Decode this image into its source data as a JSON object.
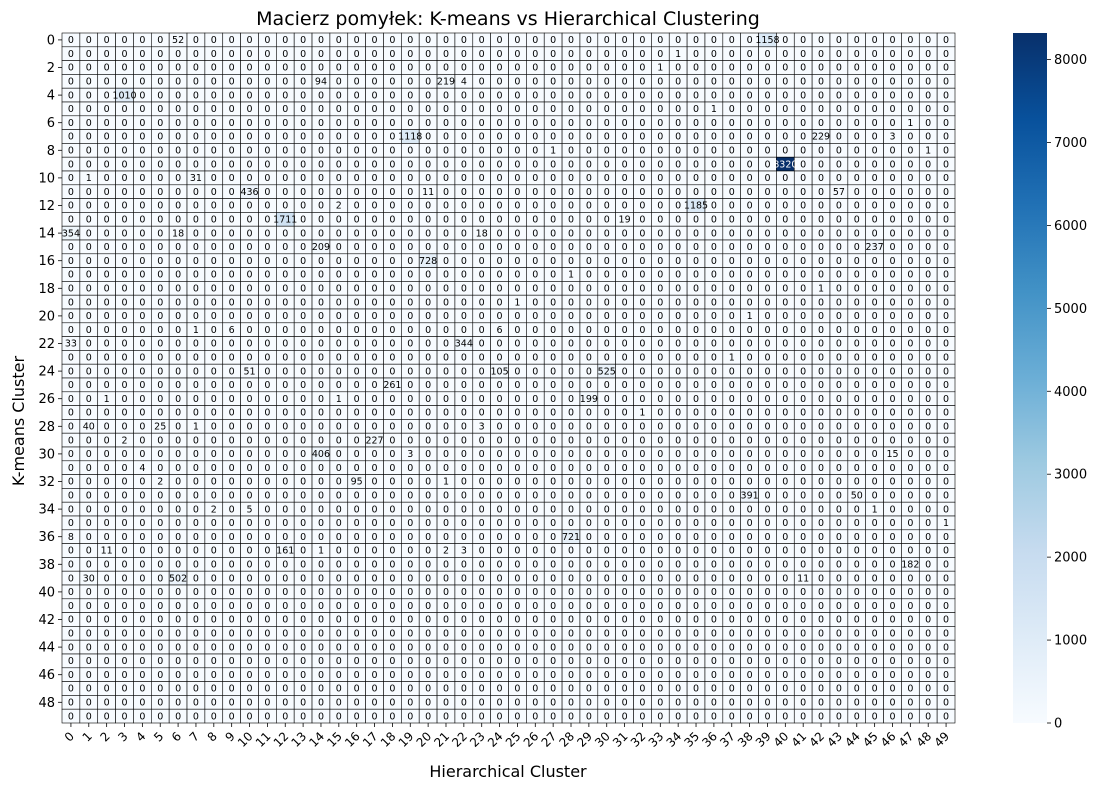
{
  "chart_data": {
    "type": "heatmap",
    "title": "Macierz pomyłek: K-means vs Hierarchical Clustering",
    "xlabel": "Hierarchical Cluster",
    "ylabel": "K-means Cluster",
    "n_rows": 50,
    "n_cols": 50,
    "x_tick_labels": [
      "0",
      "1",
      "2",
      "3",
      "4",
      "5",
      "6",
      "7",
      "8",
      "9",
      "10",
      "11",
      "12",
      "13",
      "14",
      "15",
      "16",
      "17",
      "18",
      "19",
      "20",
      "21",
      "22",
      "23",
      "24",
      "25",
      "26",
      "27",
      "28",
      "29",
      "30",
      "31",
      "32",
      "33",
      "34",
      "35",
      "36",
      "37",
      "38",
      "39",
      "40",
      "41",
      "42",
      "43",
      "44",
      "45",
      "46",
      "47",
      "48",
      "49"
    ],
    "y_tick_labels": [
      "0",
      "2",
      "4",
      "6",
      "8",
      "10",
      "12",
      "14",
      "16",
      "18",
      "20",
      "22",
      "24",
      "26",
      "28",
      "30",
      "32",
      "34",
      "36",
      "38",
      "40",
      "42",
      "44",
      "46",
      "48"
    ],
    "y_tick_rows": [
      0,
      2,
      4,
      6,
      8,
      10,
      12,
      14,
      16,
      18,
      20,
      22,
      24,
      26,
      28,
      30,
      32,
      34,
      36,
      38,
      40,
      42,
      44,
      46,
      48
    ],
    "nonzero_cells": [
      [
        0,
        6,
        52
      ],
      [
        0,
        39,
        1158
      ],
      [
        1,
        34,
        1
      ],
      [
        2,
        33,
        1
      ],
      [
        3,
        14,
        94
      ],
      [
        3,
        21,
        219
      ],
      [
        3,
        22,
        4
      ],
      [
        4,
        3,
        1010
      ],
      [
        5,
        36,
        1
      ],
      [
        6,
        47,
        1
      ],
      [
        7,
        19,
        1118
      ],
      [
        7,
        42,
        229
      ],
      [
        7,
        46,
        3
      ],
      [
        8,
        27,
        1
      ],
      [
        8,
        48,
        1
      ],
      [
        9,
        40,
        8320
      ],
      [
        10,
        1,
        1
      ],
      [
        10,
        7,
        31
      ],
      [
        11,
        10,
        436
      ],
      [
        11,
        20,
        11
      ],
      [
        11,
        43,
        57
      ],
      [
        12,
        15,
        2
      ],
      [
        12,
        35,
        1185
      ],
      [
        13,
        12,
        1711
      ],
      [
        13,
        31,
        19
      ],
      [
        14,
        0,
        354
      ],
      [
        14,
        6,
        18
      ],
      [
        14,
        23,
        18
      ],
      [
        15,
        14,
        209
      ],
      [
        15,
        45,
        237
      ],
      [
        16,
        20,
        728
      ],
      [
        17,
        28,
        1
      ],
      [
        18,
        42,
        1
      ],
      [
        19,
        25,
        1
      ],
      [
        20,
        38,
        1
      ],
      [
        21,
        7,
        1
      ],
      [
        21,
        9,
        6
      ],
      [
        21,
        24,
        6
      ],
      [
        22,
        0,
        33
      ],
      [
        22,
        22,
        344
      ],
      [
        23,
        37,
        1
      ],
      [
        24,
        10,
        51
      ],
      [
        24,
        24,
        105
      ],
      [
        24,
        30,
        525
      ],
      [
        25,
        18,
        261
      ],
      [
        26,
        2,
        1
      ],
      [
        26,
        15,
        1
      ],
      [
        26,
        29,
        199
      ],
      [
        27,
        32,
        1
      ],
      [
        28,
        1,
        40
      ],
      [
        28,
        5,
        25
      ],
      [
        28,
        7,
        1
      ],
      [
        28,
        23,
        3
      ],
      [
        29,
        3,
        2
      ],
      [
        29,
        17,
        227
      ],
      [
        30,
        14,
        406
      ],
      [
        30,
        19,
        3
      ],
      [
        30,
        46,
        15
      ],
      [
        31,
        4,
        4
      ],
      [
        32,
        5,
        2
      ],
      [
        32,
        16,
        95
      ],
      [
        32,
        21,
        1
      ],
      [
        33,
        38,
        391
      ],
      [
        33,
        44,
        50
      ],
      [
        34,
        8,
        2
      ],
      [
        34,
        10,
        5
      ],
      [
        34,
        45,
        1
      ],
      [
        35,
        49,
        1
      ],
      [
        36,
        0,
        8
      ],
      [
        36,
        28,
        721
      ],
      [
        37,
        2,
        11
      ],
      [
        37,
        12,
        161
      ],
      [
        37,
        14,
        1
      ],
      [
        37,
        21,
        2
      ],
      [
        37,
        22,
        3
      ],
      [
        38,
        47,
        182
      ],
      [
        39,
        1,
        30
      ],
      [
        39,
        6,
        502
      ],
      [
        39,
        41,
        11
      ]
    ],
    "colorscale": [
      "#f7fbff",
      "#deebf7",
      "#c6dbef",
      "#9ecae1",
      "#6baed6",
      "#4292c6",
      "#2171b5",
      "#08519c",
      "#08306b"
    ],
    "vmin": 0,
    "vmax": 8320,
    "colorbar_ticks": [
      "0",
      "1000",
      "2000",
      "3000",
      "4000",
      "5000",
      "6000",
      "7000",
      "8000"
    ],
    "colorbar_tick_values": [
      0,
      1000,
      2000,
      3000,
      4000,
      5000,
      6000,
      7000,
      8000
    ],
    "grid": true,
    "cell_annotations": true,
    "legend": "colorbar-right"
  }
}
